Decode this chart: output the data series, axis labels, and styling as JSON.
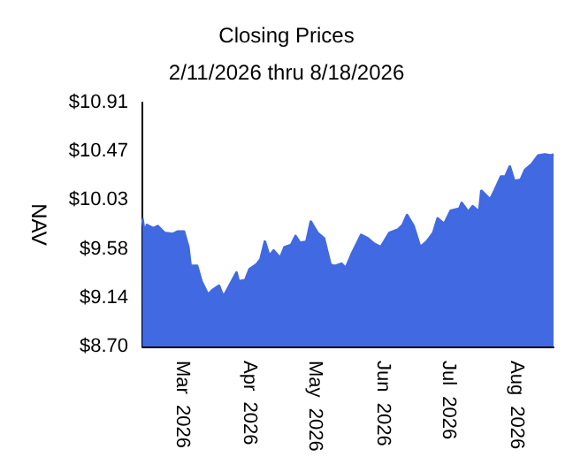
{
  "chart_data": {
    "type": "area",
    "title": "Closing Prices",
    "subtitle": "2/11/2026 thru 8/18/2026",
    "ylabel": "NAV",
    "x": [
      "2026-02-11",
      "2026-02-12",
      "2026-02-13",
      "2026-02-16",
      "2026-02-18",
      "2026-02-21",
      "2026-02-25",
      "2026-02-27",
      "2026-03-02",
      "2026-03-04",
      "2026-03-05",
      "2026-03-08",
      "2026-03-10",
      "2026-03-13",
      "2026-03-15",
      "2026-03-18",
      "2026-03-20",
      "2026-03-22",
      "2026-03-26",
      "2026-03-27",
      "2026-03-30",
      "2026-04-01",
      "2026-04-04",
      "2026-04-06",
      "2026-04-08",
      "2026-04-10",
      "2026-04-12",
      "2026-04-15",
      "2026-04-17",
      "2026-04-20",
      "2026-04-22",
      "2026-04-24",
      "2026-04-27",
      "2026-04-29",
      "2026-05-02",
      "2026-05-05",
      "2026-05-08",
      "2026-05-10",
      "2026-05-13",
      "2026-05-15",
      "2026-05-18",
      "2026-05-22",
      "2026-05-25",
      "2026-05-28",
      "2026-05-31",
      "2026-06-04",
      "2026-06-08",
      "2026-06-10",
      "2026-06-12",
      "2026-06-15",
      "2026-06-18",
      "2026-06-21",
      "2026-06-24",
      "2026-06-26",
      "2026-06-29",
      "2026-07-02",
      "2026-07-06",
      "2026-07-07",
      "2026-07-10",
      "2026-07-12",
      "2026-07-15",
      "2026-07-16",
      "2026-07-20",
      "2026-07-22",
      "2026-07-25",
      "2026-07-27",
      "2026-07-29",
      "2026-07-31",
      "2026-08-03",
      "2026-08-05",
      "2026-08-08",
      "2026-08-11",
      "2026-08-14",
      "2026-08-17",
      "2026-08-18"
    ],
    "series": [
      {
        "color": "#4169e1",
        "values": [
          9.86,
          9.72,
          9.8,
          9.77,
          9.79,
          9.73,
          9.72,
          9.74,
          9.74,
          9.6,
          9.43,
          9.43,
          9.29,
          9.17,
          9.21,
          9.25,
          9.15,
          9.22,
          9.37,
          9.29,
          9.3,
          9.4,
          9.44,
          9.49,
          9.65,
          9.52,
          9.57,
          9.5,
          9.6,
          9.62,
          9.7,
          9.64,
          9.65,
          9.83,
          9.73,
          9.68,
          9.44,
          9.43,
          9.45,
          9.41,
          9.55,
          9.71,
          9.68,
          9.63,
          9.6,
          9.73,
          9.76,
          9.8,
          9.89,
          9.79,
          9.6,
          9.65,
          9.73,
          9.86,
          9.81,
          9.93,
          9.95,
          10.0,
          9.92,
          9.97,
          9.92,
          10.11,
          10.03,
          10.11,
          10.24,
          10.24,
          10.33,
          10.2,
          10.21,
          10.3,
          10.35,
          10.43,
          10.44,
          10.43,
          10.44
        ]
      }
    ],
    "xlim": [
      "2026-02-11",
      "2026-08-18"
    ],
    "xticks": [
      {
        "value": "2026-03-01",
        "label": "Mar  2026"
      },
      {
        "value": "2026-04-01",
        "label": "Apr  2026"
      },
      {
        "value": "2026-05-01",
        "label": "May  2026"
      },
      {
        "value": "2026-06-01",
        "label": "Jun  2026"
      },
      {
        "value": "2026-07-01",
        "label": "Jul  2026"
      },
      {
        "value": "2026-08-01",
        "label": "Aug  2026"
      }
    ],
    "ylim": [
      8.7,
      10.91
    ],
    "yticks": [
      {
        "value": 8.7,
        "label": "$8.70"
      },
      {
        "value": 9.142,
        "label": "$9.14"
      },
      {
        "value": 9.584,
        "label": "$9.58"
      },
      {
        "value": 10.026,
        "label": "$10.03"
      },
      {
        "value": 10.468,
        "label": "$10.47"
      },
      {
        "value": 10.91,
        "label": "$10.91"
      }
    ],
    "grid": false
  }
}
